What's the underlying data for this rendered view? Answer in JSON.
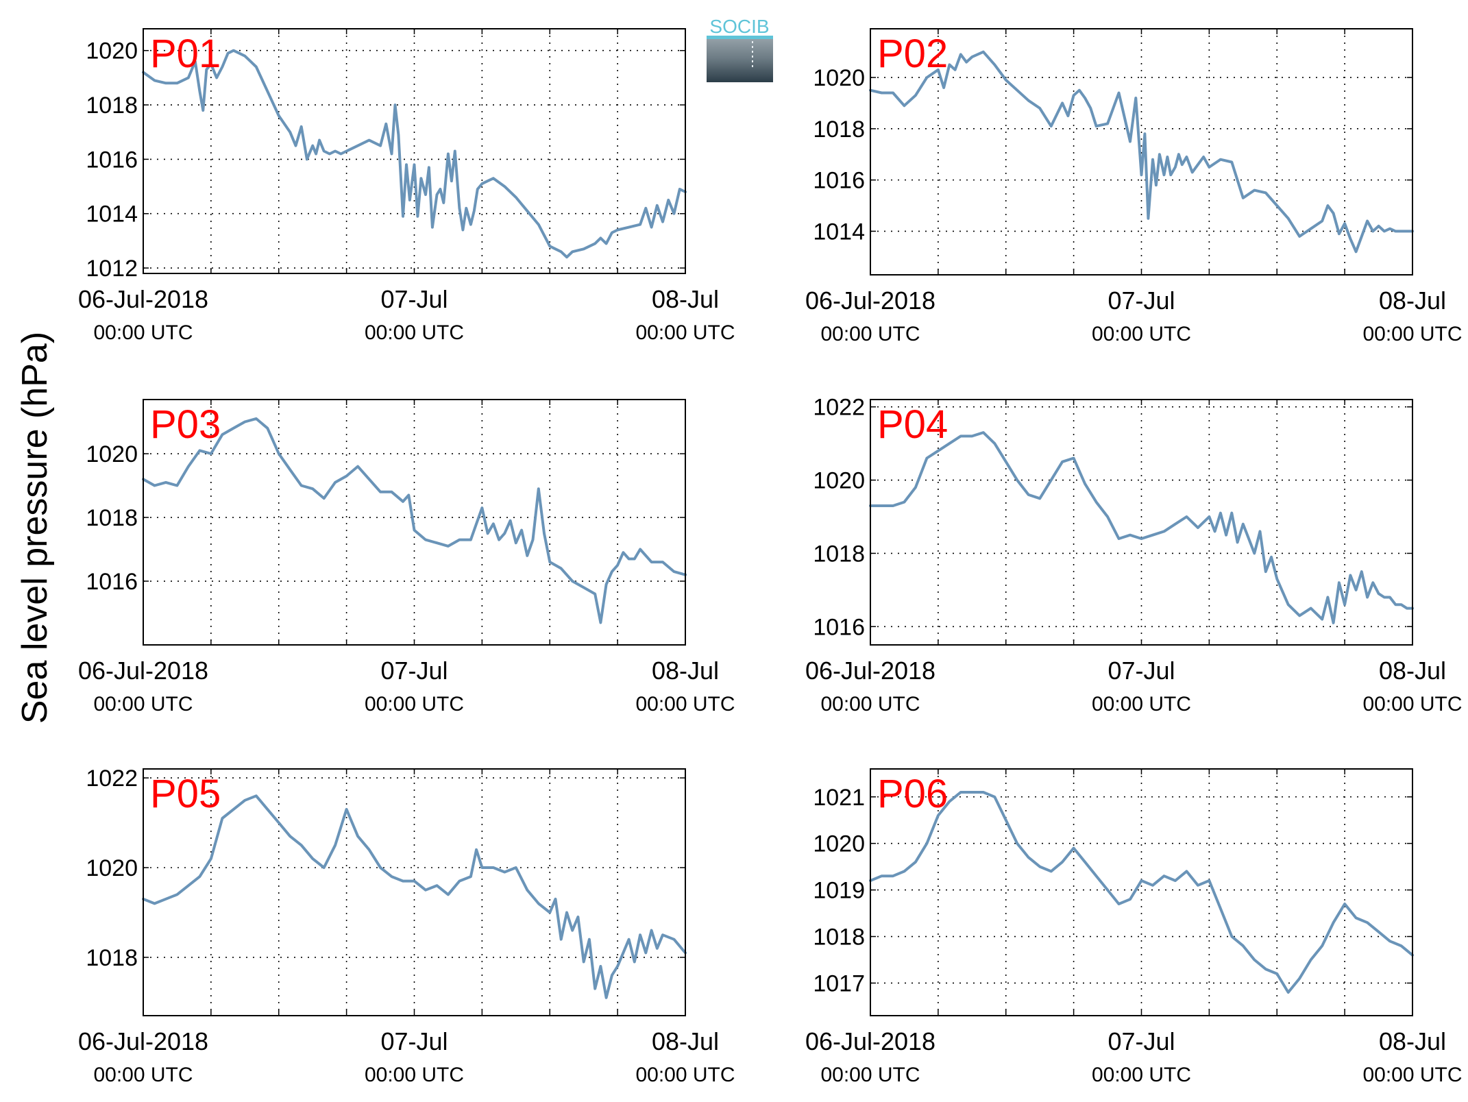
{
  "figure": {
    "ylabel": "Sea level pressure (hPa)",
    "logo_text": "SOCIB",
    "colors": {
      "line": "#6a94b8",
      "panel_label": "#ff0000",
      "axis": "#000000",
      "grid": "#000000"
    }
  },
  "chart_data": [
    {
      "type": "line",
      "panel_label": "P01",
      "ylim": [
        1011.8,
        1020.8
      ],
      "yticks": [
        1012,
        1014,
        1016,
        1018,
        1020
      ],
      "xlim": [
        0,
        48
      ],
      "grid": "dotted",
      "xtick_labels": [
        [
          "06-Jul-2018",
          "00:00 UTC"
        ],
        [
          "07-Jul",
          "00:00 UTC"
        ],
        [
          "08-Jul",
          "00:00 UTC"
        ]
      ],
      "series": [
        {
          "x": [
            0,
            1,
            2,
            3,
            4,
            4.6,
            5,
            5.3,
            5.6,
            6,
            6.5,
            7,
            7.5,
            8,
            8.5,
            9,
            9.5,
            10,
            11,
            12,
            13,
            13.5,
            14,
            14.5,
            15,
            15.3,
            15.6,
            16,
            16.5,
            17,
            17.5,
            18,
            19,
            20,
            21,
            21.5,
            22,
            22.3,
            22.6,
            23,
            23.3,
            23.6,
            24,
            24.3,
            24.6,
            25,
            25.3,
            25.6,
            26,
            26.3,
            26.6,
            27,
            27.3,
            27.6,
            28,
            28.3,
            28.6,
            29,
            29.3,
            29.6,
            30,
            30.5,
            31,
            32,
            33,
            34,
            35,
            36,
            37,
            37.5,
            38,
            39,
            40,
            40.5,
            41,
            41.5,
            42,
            43,
            44,
            44.5,
            45,
            45.5,
            46,
            46.5,
            47,
            47.5,
            48
          ],
          "y": [
            1019.2,
            1018.9,
            1018.8,
            1018.8,
            1019.0,
            1019.6,
            1018.5,
            1017.8,
            1019.3,
            1019.5,
            1019.0,
            1019.4,
            1019.9,
            1020.0,
            1019.9,
            1019.8,
            1019.6,
            1019.4,
            1018.5,
            1017.6,
            1017.0,
            1016.5,
            1017.2,
            1016.0,
            1016.5,
            1016.2,
            1016.7,
            1016.3,
            1016.2,
            1016.3,
            1016.2,
            1016.3,
            1016.5,
            1016.7,
            1016.5,
            1017.3,
            1016.2,
            1018.0,
            1016.9,
            1013.9,
            1015.8,
            1014.5,
            1015.8,
            1013.9,
            1015.3,
            1014.7,
            1015.7,
            1013.5,
            1014.7,
            1014.9,
            1014.4,
            1016.2,
            1015.2,
            1016.3,
            1014.2,
            1013.4,
            1014.2,
            1013.6,
            1014.1,
            1014.9,
            1015.1,
            1015.2,
            1015.3,
            1015.0,
            1014.6,
            1014.1,
            1013.6,
            1012.8,
            1012.6,
            1012.4,
            1012.6,
            1012.7,
            1012.9,
            1013.1,
            1012.9,
            1013.3,
            1013.4,
            1013.5,
            1013.6,
            1014.2,
            1013.5,
            1014.3,
            1013.7,
            1014.5,
            1014.0,
            1014.9,
            1014.8
          ]
        }
      ]
    },
    {
      "type": "line",
      "panel_label": "P02",
      "ylim": [
        1012.3,
        1021.9
      ],
      "yticks": [
        1014,
        1016,
        1018,
        1020
      ],
      "xlim": [
        0,
        48
      ],
      "grid": "dotted",
      "xtick_labels": [
        [
          "06-Jul-2018",
          "00:00 UTC"
        ],
        [
          "07-Jul",
          "00:00 UTC"
        ],
        [
          "08-Jul",
          "00:00 UTC"
        ]
      ],
      "series": [
        {
          "x": [
            0,
            1,
            2,
            3,
            4,
            5,
            6,
            6.5,
            7,
            7.5,
            8,
            8.5,
            9,
            10,
            11,
            12,
            13,
            14,
            15,
            16,
            17,
            17.5,
            18,
            18.5,
            19,
            19.5,
            20,
            21,
            22,
            23,
            23.5,
            24,
            24.3,
            24.6,
            25,
            25.3,
            25.6,
            26,
            26.3,
            26.6,
            27,
            27.3,
            27.6,
            28,
            28.5,
            29,
            29.5,
            30,
            31,
            32,
            33,
            34,
            35,
            36,
            37,
            38,
            39,
            40,
            40.5,
            41,
            41.5,
            42,
            42.5,
            43,
            44,
            44.5,
            45,
            45.5,
            46,
            46.5,
            47,
            47.5,
            48
          ],
          "y": [
            1019.5,
            1019.4,
            1019.4,
            1018.9,
            1019.3,
            1020.0,
            1020.3,
            1019.6,
            1020.5,
            1020.3,
            1020.9,
            1020.6,
            1020.8,
            1021.0,
            1020.5,
            1019.9,
            1019.5,
            1019.1,
            1018.8,
            1018.1,
            1019.0,
            1018.5,
            1019.3,
            1019.5,
            1019.2,
            1018.8,
            1018.1,
            1018.2,
            1019.4,
            1017.5,
            1019.2,
            1016.2,
            1017.8,
            1014.5,
            1016.8,
            1015.8,
            1017.0,
            1016.2,
            1016.9,
            1016.2,
            1016.5,
            1017.0,
            1016.6,
            1016.9,
            1016.3,
            1016.6,
            1016.9,
            1016.5,
            1016.8,
            1016.7,
            1015.3,
            1015.6,
            1015.5,
            1015.0,
            1014.5,
            1013.8,
            1014.1,
            1014.4,
            1015.0,
            1014.7,
            1013.9,
            1014.3,
            1013.7,
            1013.2,
            1014.4,
            1014.0,
            1014.2,
            1014.0,
            1014.1,
            1014.0,
            1014.0,
            1014.0,
            1014.0
          ]
        }
      ]
    },
    {
      "type": "line",
      "panel_label": "P03",
      "ylim": [
        1014.0,
        1021.7
      ],
      "yticks": [
        1016,
        1018,
        1020
      ],
      "xlim": [
        0,
        48
      ],
      "grid": "dotted",
      "xtick_labels": [
        [
          "06-Jul-2018",
          "00:00 UTC"
        ],
        [
          "07-Jul",
          "00:00 UTC"
        ],
        [
          "08-Jul",
          "00:00 UTC"
        ]
      ],
      "series": [
        {
          "x": [
            0,
            1,
            2,
            3,
            4,
            5,
            6,
            7,
            8,
            9,
            10,
            11,
            12,
            13,
            14,
            15,
            16,
            17,
            18,
            19,
            20,
            21,
            22,
            23,
            23.5,
            24,
            25,
            26,
            27,
            28,
            29,
            29.5,
            30,
            30.5,
            31,
            31.5,
            32,
            32.5,
            33,
            33.5,
            34,
            34.5,
            35,
            35.5,
            36,
            37,
            38,
            39,
            40,
            40.5,
            41,
            41.5,
            42,
            42.5,
            43,
            43.5,
            44,
            45,
            46,
            47,
            48
          ],
          "y": [
            1019.2,
            1019.0,
            1019.1,
            1019.0,
            1019.6,
            1020.1,
            1020.0,
            1020.6,
            1020.8,
            1021.0,
            1021.1,
            1020.8,
            1020.0,
            1019.5,
            1019.0,
            1018.9,
            1018.6,
            1019.1,
            1019.3,
            1019.6,
            1019.2,
            1018.8,
            1018.8,
            1018.5,
            1018.7,
            1017.6,
            1017.3,
            1017.2,
            1017.1,
            1017.3,
            1017.3,
            1017.8,
            1018.3,
            1017.5,
            1017.8,
            1017.3,
            1017.5,
            1017.9,
            1017.2,
            1017.6,
            1016.8,
            1017.3,
            1018.9,
            1017.5,
            1016.6,
            1016.4,
            1016.0,
            1015.8,
            1015.6,
            1014.7,
            1015.9,
            1016.3,
            1016.5,
            1016.9,
            1016.7,
            1016.7,
            1017.0,
            1016.6,
            1016.6,
            1016.3,
            1016.2
          ]
        }
      ]
    },
    {
      "type": "line",
      "panel_label": "P04",
      "ylim": [
        1015.5,
        1022.2
      ],
      "yticks": [
        1016,
        1018,
        1020,
        1022
      ],
      "xlim": [
        0,
        48
      ],
      "grid": "dotted",
      "xtick_labels": [
        [
          "06-Jul-2018",
          "00:00 UTC"
        ],
        [
          "07-Jul",
          "00:00 UTC"
        ],
        [
          "08-Jul",
          "00:00 UTC"
        ]
      ],
      "series": [
        {
          "x": [
            0,
            1,
            2,
            3,
            4,
            5,
            6,
            7,
            8,
            9,
            10,
            11,
            12,
            13,
            14,
            15,
            16,
            17,
            18,
            19,
            20,
            21,
            22,
            23,
            24,
            25,
            26,
            27,
            28,
            29,
            30,
            30.5,
            31,
            31.5,
            32,
            32.5,
            33,
            33.5,
            34,
            34.5,
            35,
            35.5,
            36,
            37,
            38,
            39,
            40,
            40.5,
            41,
            41.5,
            42,
            42.5,
            43,
            43.5,
            44,
            44.5,
            45,
            45.5,
            46,
            46.5,
            47,
            47.5,
            48
          ],
          "y": [
            1019.3,
            1019.3,
            1019.3,
            1019.4,
            1019.8,
            1020.6,
            1020.8,
            1021.0,
            1021.2,
            1021.2,
            1021.3,
            1021.0,
            1020.5,
            1020.0,
            1019.6,
            1019.5,
            1020.0,
            1020.5,
            1020.6,
            1019.9,
            1019.4,
            1019.0,
            1018.4,
            1018.5,
            1018.4,
            1018.5,
            1018.6,
            1018.8,
            1019.0,
            1018.7,
            1019.0,
            1018.6,
            1019.1,
            1018.5,
            1019.1,
            1018.3,
            1018.8,
            1018.4,
            1018.0,
            1018.6,
            1017.5,
            1017.9,
            1017.3,
            1016.6,
            1016.3,
            1016.5,
            1016.2,
            1016.8,
            1016.1,
            1017.2,
            1016.6,
            1017.4,
            1017.0,
            1017.5,
            1016.8,
            1017.2,
            1016.9,
            1016.8,
            1016.8,
            1016.6,
            1016.6,
            1016.5,
            1016.5
          ]
        }
      ]
    },
    {
      "type": "line",
      "panel_label": "P05",
      "ylim": [
        1016.7,
        1022.2
      ],
      "yticks": [
        1018,
        1020,
        1022
      ],
      "xlim": [
        0,
        48
      ],
      "grid": "dotted",
      "xtick_labels": [
        [
          "06-Jul-2018",
          "00:00 UTC"
        ],
        [
          "07-Jul",
          "00:00 UTC"
        ],
        [
          "08-Jul",
          "00:00 UTC"
        ]
      ],
      "series": [
        {
          "x": [
            0,
            1,
            2,
            3,
            4,
            5,
            6,
            7,
            8,
            9,
            10,
            11,
            12,
            13,
            14,
            15,
            16,
            17,
            18,
            19,
            20,
            21,
            22,
            23,
            24,
            25,
            26,
            27,
            28,
            29,
            29.5,
            30,
            31,
            32,
            33,
            34,
            35,
            36,
            36.5,
            37,
            37.5,
            38,
            38.5,
            39,
            39.5,
            40,
            40.5,
            41,
            41.5,
            42,
            43,
            43.5,
            44,
            44.5,
            45,
            45.5,
            46,
            47,
            48
          ],
          "y": [
            1019.3,
            1019.2,
            1019.3,
            1019.4,
            1019.6,
            1019.8,
            1020.2,
            1021.1,
            1021.3,
            1021.5,
            1021.6,
            1021.3,
            1021.0,
            1020.7,
            1020.5,
            1020.2,
            1020.0,
            1020.5,
            1021.3,
            1020.7,
            1020.4,
            1020.0,
            1019.8,
            1019.7,
            1019.7,
            1019.5,
            1019.6,
            1019.4,
            1019.7,
            1019.8,
            1020.4,
            1020.0,
            1020.0,
            1019.9,
            1020.0,
            1019.5,
            1019.2,
            1019.0,
            1019.3,
            1018.4,
            1019.0,
            1018.6,
            1018.9,
            1017.9,
            1018.4,
            1017.3,
            1017.8,
            1017.1,
            1017.6,
            1017.8,
            1018.4,
            1017.9,
            1018.5,
            1018.1,
            1018.6,
            1018.2,
            1018.5,
            1018.4,
            1018.1
          ]
        }
      ]
    },
    {
      "type": "line",
      "panel_label": "P06",
      "ylim": [
        1016.3,
        1021.6
      ],
      "yticks": [
        1017,
        1018,
        1019,
        1020,
        1021
      ],
      "xlim": [
        0,
        48
      ],
      "grid": "dotted",
      "xtick_labels": [
        [
          "06-Jul-2018",
          "00:00 UTC"
        ],
        [
          "07-Jul",
          "00:00 UTC"
        ],
        [
          "08-Jul",
          "00:00 UTC"
        ]
      ],
      "series": [
        {
          "x": [
            0,
            1,
            2,
            3,
            4,
            5,
            6,
            7,
            8,
            9,
            10,
            11,
            12,
            13,
            14,
            15,
            16,
            17,
            18,
            19,
            20,
            21,
            22,
            23,
            24,
            25,
            26,
            27,
            28,
            29,
            30,
            31,
            32,
            33,
            34,
            35,
            36,
            37,
            38,
            39,
            40,
            41,
            42,
            43,
            44,
            45,
            46,
            47,
            48
          ],
          "y": [
            1019.2,
            1019.3,
            1019.3,
            1019.4,
            1019.6,
            1020.0,
            1020.6,
            1020.9,
            1021.1,
            1021.1,
            1021.1,
            1021.0,
            1020.5,
            1020.0,
            1019.7,
            1019.5,
            1019.4,
            1019.6,
            1019.9,
            1019.6,
            1019.3,
            1019.0,
            1018.7,
            1018.8,
            1019.2,
            1019.1,
            1019.3,
            1019.2,
            1019.4,
            1019.1,
            1019.2,
            1018.6,
            1018.0,
            1017.8,
            1017.5,
            1017.3,
            1017.2,
            1016.8,
            1017.1,
            1017.5,
            1017.8,
            1018.3,
            1018.7,
            1018.4,
            1018.3,
            1018.1,
            1017.9,
            1017.8,
            1017.6
          ]
        }
      ]
    }
  ]
}
